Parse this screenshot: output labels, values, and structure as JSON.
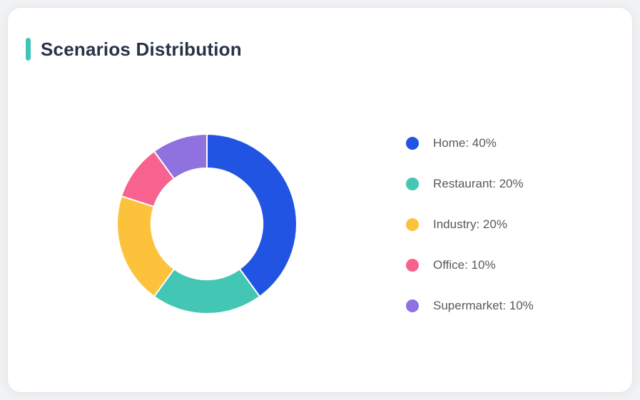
{
  "page": {
    "background_color": "#F1F2F4"
  },
  "card": {
    "title": "Scenarios Distribution",
    "accent_color": "#3FC6BC",
    "background_color": "#FFFFFF"
  },
  "chart_data": {
    "type": "pie",
    "subtype": "donut",
    "title": "Scenarios Distribution",
    "categories": [
      "Home",
      "Restaurant",
      "Industry",
      "Office",
      "Supermarket"
    ],
    "values": [
      40,
      20,
      20,
      10,
      10
    ],
    "unit": "%",
    "colors": [
      "#2254E3",
      "#43C6B3",
      "#FCC23C",
      "#F7628E",
      "#8F72E0"
    ],
    "start_angle_deg": 0,
    "direction": "clockwise",
    "inner_radius_ratio": 0.62,
    "segment_border_color": "#FFFFFF",
    "legend_position": "right",
    "legend": [
      {
        "label": "Home: 40%",
        "color": "#2254E3"
      },
      {
        "label": "Restaurant: 20%",
        "color": "#43C6B3"
      },
      {
        "label": "Industry: 20%",
        "color": "#FCC23C"
      },
      {
        "label": "Office: 10%",
        "color": "#F7628E"
      },
      {
        "label": "Supermarket: 10%",
        "color": "#8F72E0"
      }
    ]
  }
}
